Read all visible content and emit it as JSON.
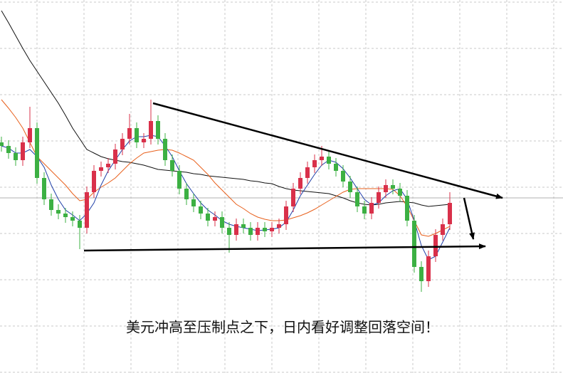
{
  "chart_data": {
    "type": "candlestick",
    "title": "美元冲高至压制点之下，日内看好调整回落空间！",
    "ylim": [
      0,
      420
    ],
    "up_color": "#d9304a",
    "down_color": "#3cb043",
    "open": [
      220,
      215,
      205,
      195,
      220,
      240,
      170,
      140,
      125,
      120,
      115,
      110,
      100,
      150,
      180,
      185,
      190,
      210,
      225,
      240,
      220,
      225,
      250,
      225,
      195,
      180,
      155,
      140,
      130,
      120,
      110,
      115,
      100,
      90,
      105,
      100,
      90,
      100,
      95,
      100,
      105,
      130,
      155,
      170,
      185,
      195,
      200,
      190,
      180,
      165,
      150,
      130,
      120,
      135,
      150,
      160,
      155,
      145,
      110,
      45,
      25,
      60,
      90,
      105
    ],
    "high": [
      228,
      223,
      213,
      228,
      270,
      248,
      178,
      148,
      133,
      128,
      123,
      118,
      158,
      188,
      193,
      198,
      218,
      233,
      260,
      248,
      233,
      280,
      258,
      233,
      203,
      188,
      163,
      148,
      138,
      128,
      123,
      123,
      108,
      113,
      113,
      108,
      108,
      108,
      108,
      113,
      138,
      163,
      178,
      193,
      203,
      215,
      208,
      198,
      188,
      173,
      158,
      138,
      143,
      158,
      168,
      168,
      163,
      153,
      118,
      53,
      68,
      98,
      113,
      150
    ],
    "low": [
      207,
      197,
      187,
      187,
      212,
      162,
      132,
      117,
      112,
      107,
      102,
      70,
      92,
      142,
      172,
      177,
      182,
      202,
      217,
      212,
      212,
      217,
      217,
      187,
      172,
      147,
      132,
      122,
      112,
      102,
      102,
      92,
      65,
      82,
      92,
      82,
      82,
      87,
      87,
      92,
      97,
      122,
      147,
      162,
      177,
      187,
      182,
      172,
      157,
      142,
      122,
      112,
      112,
      127,
      142,
      147,
      137,
      102,
      37,
      10,
      17,
      52,
      82,
      97
    ],
    "close": [
      215,
      205,
      195,
      220,
      240,
      170,
      140,
      125,
      120,
      115,
      110,
      100,
      150,
      180,
      185,
      190,
      210,
      225,
      240,
      220,
      225,
      250,
      225,
      195,
      180,
      155,
      140,
      130,
      120,
      110,
      115,
      100,
      90,
      105,
      100,
      90,
      100,
      95,
      100,
      105,
      130,
      155,
      170,
      185,
      195,
      200,
      190,
      180,
      165,
      150,
      130,
      120,
      135,
      150,
      160,
      155,
      145,
      110,
      45,
      25,
      60,
      90,
      105,
      135
    ],
    "series": [
      {
        "color": "#111111",
        "values": [
          405,
          388,
          370,
          352,
          335,
          320,
          305,
          290,
          275,
          258,
          240,
          225,
          210,
          205,
          200,
          197,
          195,
          193,
          192,
          190,
          188,
          185,
          182,
          181,
          180,
          179,
          178,
          176,
          175,
          173,
          172,
          171,
          170,
          169,
          168,
          166,
          165,
          163,
          162,
          158,
          155,
          153,
          152,
          151,
          150,
          149,
          148,
          145,
          142,
          138,
          135,
          133,
          132,
          133,
          135,
          136,
          137,
          136,
          135,
          132,
          130,
          131,
          132,
          133
        ]
      },
      {
        "color": "#e8601c",
        "values": [
          280,
          268,
          255,
          240,
          220,
          200,
          190,
          180,
          170,
          160,
          148,
          138,
          140,
          150,
          157,
          163,
          170,
          180,
          190,
          198,
          205,
          207,
          209,
          210,
          209,
          205,
          200,
          195,
          185,
          175,
          163,
          153,
          143,
          133,
          127,
          120,
          115,
          112,
          110,
          110,
          111,
          114,
          117,
          121,
          126,
          132,
          138,
          144,
          150,
          154,
          155,
          155,
          155,
          155,
          155,
          154,
          145,
          130,
          110,
          90,
          88,
          92,
          97,
          102
        ]
      },
      {
        "color": "#1f3fa8",
        "values": [
          215,
          212,
          205,
          205,
          210,
          200,
          185,
          160,
          140,
          125,
          118,
          110,
          120,
          135,
          160,
          180,
          195,
          210,
          222,
          228,
          228,
          230,
          228,
          215,
          200,
          180,
          162,
          148,
          135,
          125,
          118,
          110,
          105,
          102,
          100,
          98,
          96,
          97,
          98,
          100,
          108,
          125,
          145,
          160,
          175,
          188,
          195,
          192,
          183,
          170,
          155,
          140,
          132,
          135,
          145,
          152,
          155,
          140,
          110,
          75,
          55,
          60,
          80,
          100
        ]
      }
    ]
  }
}
